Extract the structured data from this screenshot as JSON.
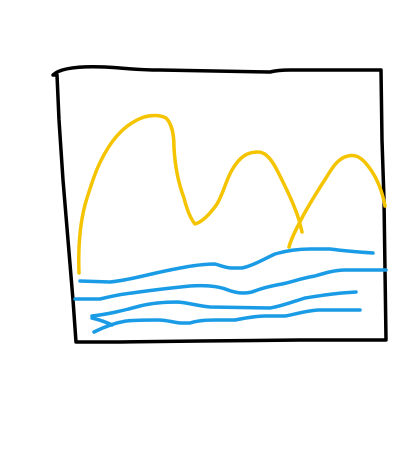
{
  "drawing": {
    "colors": {
      "frame": "#000000",
      "mountains": "#f5c400",
      "water": "#1a9be6",
      "background": "#ffffff"
    }
  }
}
